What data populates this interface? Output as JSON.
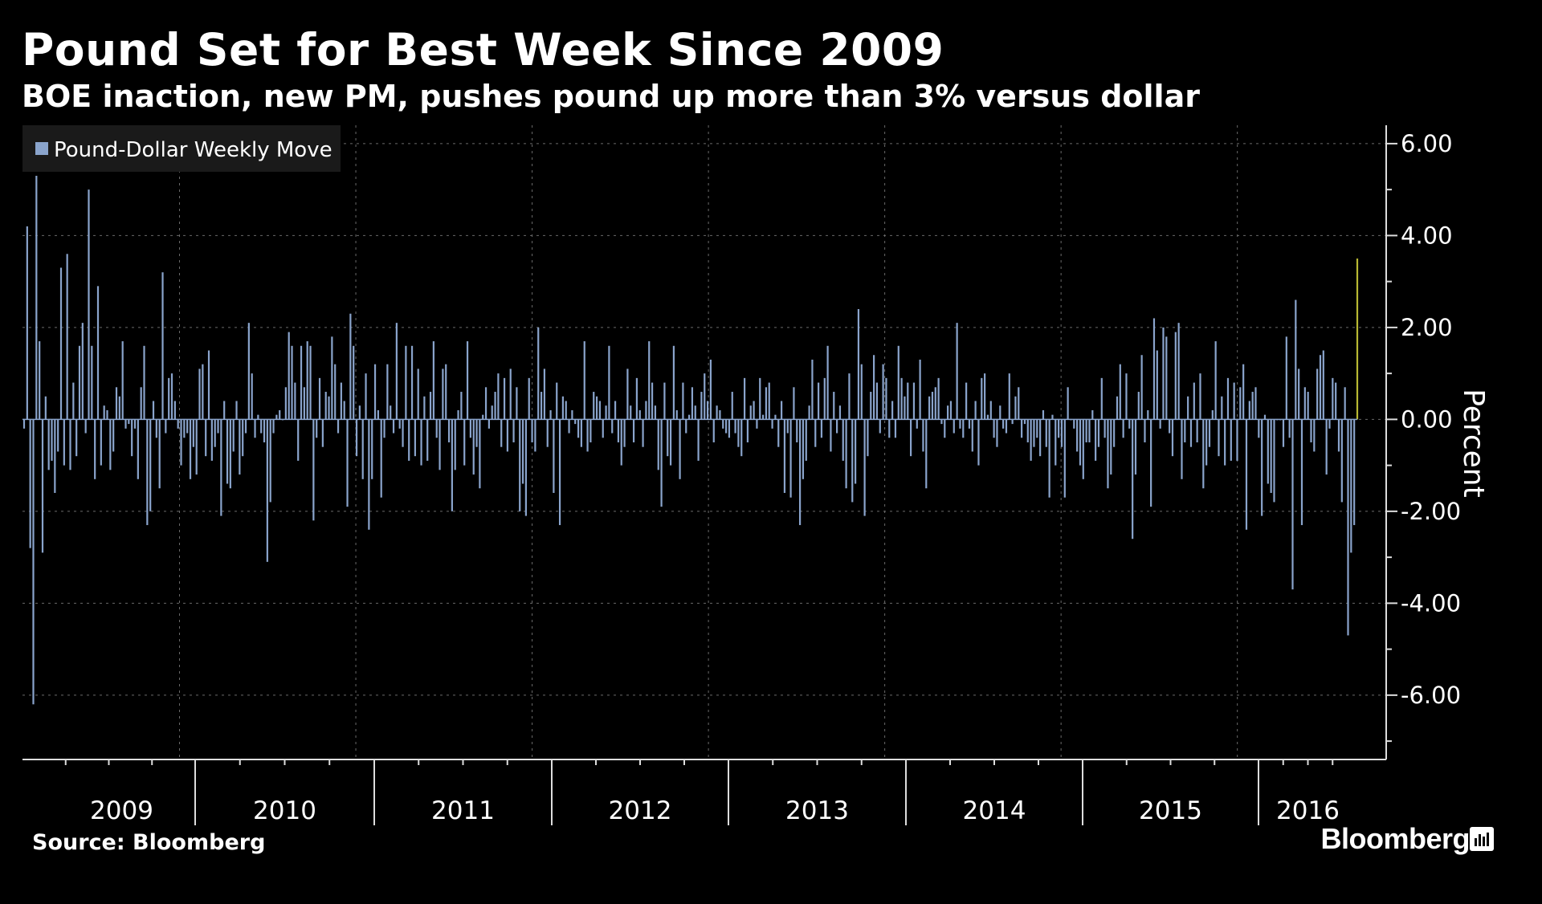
{
  "header": {
    "title": "Pound Set for Best Week Since 2009",
    "subtitle": "BOE inaction, new PM, pushes pound up more than 3% versus dollar"
  },
  "footer": {
    "source": "Source: Bloomberg",
    "brand": "Bloomberg"
  },
  "colors": {
    "background": "#000000",
    "bar": "#8aa4cc",
    "highlight": "#b8b832",
    "grid": "#6a6a6a",
    "legend_bg": "#1a1a1a"
  },
  "chart_data": {
    "type": "bar",
    "ylabel": "Percent",
    "ylim": [
      -7.4,
      6.4
    ],
    "yticks": [
      6,
      4,
      2,
      0,
      -2,
      -4,
      -6
    ],
    "ytick_labels": [
      "6.00",
      "4.00",
      "2.00",
      "0.00",
      "-2.00",
      "-4.00",
      "-6.00"
    ],
    "x_start_year": 2009,
    "x_end_year": 2016.58,
    "years": [
      "2009",
      "2010",
      "2011",
      "2012",
      "2013",
      "2014",
      "2015",
      "2016"
    ],
    "grid": true,
    "legend": {
      "position": "top-left",
      "entries": [
        "Pound-Dollar Weekly Move"
      ]
    },
    "series": [
      {
        "name": "Pound-Dollar Weekly Move",
        "values": [
          -0.2,
          4.2,
          -2.8,
          -6.2,
          5.3,
          1.7,
          -2.9,
          0.5,
          -1.1,
          -0.9,
          -1.6,
          -0.7,
          3.3,
          -1.0,
          3.6,
          -1.1,
          0.8,
          -0.8,
          1.6,
          2.1,
          -0.3,
          5.0,
          1.6,
          -1.3,
          2.9,
          -1.0,
          0.3,
          0.2,
          -1.1,
          -0.7,
          0.7,
          0.5,
          1.7,
          -0.2,
          -0.1,
          -0.8,
          -0.2,
          -1.3,
          0.7,
          1.6,
          -2.3,
          -2.0,
          0.4,
          -0.4,
          -1.5,
          3.2,
          -0.3,
          0.9,
          1.0,
          0.4,
          -0.2,
          -1.0,
          -0.4,
          -0.3,
          -1.3,
          -0.6,
          -1.2,
          1.1,
          1.2,
          -0.8,
          1.5,
          -0.9,
          -0.6,
          -0.3,
          -2.1,
          0.4,
          -1.4,
          -1.5,
          -0.7,
          0.4,
          -1.2,
          -0.8,
          -0.3,
          2.1,
          1.0,
          -0.4,
          0.1,
          -0.3,
          -0.5,
          -3.1,
          -1.8,
          -0.3,
          0.1,
          0.2,
          0.0,
          0.7,
          1.9,
          1.6,
          0.8,
          -0.9,
          1.6,
          0.7,
          1.7,
          1.6,
          -2.2,
          -0.4,
          0.9,
          -0.6,
          0.6,
          0.5,
          1.8,
          1.2,
          -0.3,
          0.8,
          0.4,
          -1.9,
          2.3,
          1.6,
          -0.8,
          0.3,
          -1.3,
          1.0,
          -2.4,
          -1.3,
          1.2,
          0.2,
          -1.7,
          -0.4,
          1.2,
          0.3,
          -0.3,
          2.1,
          -0.2,
          -0.6,
          1.6,
          -0.9,
          1.6,
          -0.8,
          1.1,
          -1.0,
          0.5,
          -0.9,
          0.6,
          1.7,
          -0.4,
          -1.1,
          1.1,
          1.2,
          -0.5,
          -2.0,
          -1.1,
          0.2,
          0.6,
          -1.0,
          1.7,
          -0.4,
          -1.2,
          -0.6,
          -1.5,
          0.1,
          0.7,
          -0.2,
          0.3,
          0.6,
          1.0,
          -0.6,
          0.9,
          -0.7,
          1.1,
          -0.5,
          0.7,
          -2.0,
          -1.4,
          -2.1,
          0.9,
          -0.5,
          -0.7,
          2.0,
          0.6,
          1.1,
          -0.6,
          0.2,
          -1.6,
          0.8,
          -2.3,
          0.5,
          0.4,
          -0.3,
          0.2,
          -0.1,
          -0.4,
          -0.6,
          1.7,
          -0.7,
          -0.5,
          0.6,
          0.5,
          0.4,
          -0.4,
          0.3,
          1.6,
          -0.3,
          0.4,
          -0.5,
          -1.0,
          -0.6,
          1.1,
          0.3,
          -0.5,
          0.9,
          0.2,
          -0.6,
          0.4,
          1.7,
          0.8,
          0.3,
          -1.1,
          -1.9,
          0.8,
          -0.8,
          -1.0,
          1.6,
          0.2,
          -1.3,
          0.8,
          -0.3,
          0.1,
          0.7,
          0.3,
          -0.9,
          0.6,
          1.0,
          0.4,
          1.3,
          -0.5,
          0.3,
          0.2,
          -0.2,
          -0.3,
          -0.4,
          0.6,
          -0.3,
          -0.6,
          -0.8,
          0.9,
          -0.5,
          0.3,
          0.4,
          -0.2,
          0.9,
          0.1,
          0.7,
          0.8,
          -0.2,
          0.1,
          -0.6,
          0.4,
          -1.6,
          -0.3,
          -1.7,
          0.7,
          -0.5,
          -2.3,
          -1.3,
          -0.9,
          0.3,
          1.3,
          -0.6,
          0.8,
          -0.4,
          0.9,
          1.6,
          -0.7,
          0.6,
          -0.3,
          0.3,
          -0.9,
          -1.5,
          1.0,
          -1.8,
          -1.4,
          2.4,
          1.2,
          -2.1,
          -0.8,
          0.6,
          1.4,
          0.8,
          -0.3,
          1.2,
          0.9,
          -0.4,
          0.4,
          -0.4,
          1.6,
          0.9,
          0.5,
          0.8,
          -0.8,
          0.8,
          -0.2,
          1.3,
          -0.7,
          -1.5,
          0.5,
          0.6,
          0.7,
          0.9,
          -0.1,
          -0.4,
          0.3,
          0.4,
          -0.3,
          2.1,
          -0.2,
          -0.4,
          0.8,
          -0.2,
          -0.7,
          0.4,
          -1.0,
          0.9,
          1.0,
          0.1,
          0.4,
          -0.4,
          -0.6,
          0.3,
          -0.2,
          -0.3,
          1.0,
          -0.1,
          0.5,
          0.7,
          -0.4,
          -0.1,
          -0.5,
          -0.9,
          -0.6,
          -0.4,
          -0.8,
          0.2,
          -0.6,
          -1.7,
          0.1,
          -1.0,
          -0.4,
          -0.6,
          -1.7,
          0.7,
          0.0,
          -0.2,
          -0.7,
          -1.0,
          -1.3,
          -0.5,
          -0.5,
          0.2,
          -0.9,
          -0.6,
          0.9,
          -0.4,
          -1.5,
          -1.2,
          -0.6,
          0.5,
          1.2,
          -0.4,
          1.0,
          -0.2,
          -2.6,
          -1.2,
          0.6,
          1.4,
          -0.5,
          0.2,
          -1.9,
          2.2,
          1.5,
          -0.2,
          2.0,
          1.8,
          -0.3,
          -0.8,
          1.9,
          2.1,
          -1.3,
          -0.5,
          0.5,
          -0.6,
          0.8,
          -0.5,
          1.0,
          -1.5,
          -1.0,
          -0.6,
          0.2,
          1.7,
          -0.8,
          0.5,
          -1.0,
          0.9,
          -0.9,
          0.8,
          -0.9,
          0.7,
          1.2,
          -2.4,
          0.4,
          0.6,
          0.7,
          -0.4,
          -2.1,
          0.1,
          -1.4,
          -1.6,
          -1.8,
          0.0,
          0.0,
          -0.6,
          1.8,
          -0.4,
          -3.7,
          2.6,
          1.1,
          -2.3,
          0.7,
          0.6,
          -0.5,
          -0.7,
          1.1,
          1.4,
          1.5,
          -1.2,
          -0.2,
          0.9,
          0.8,
          -0.7,
          -1.8,
          0.7,
          -4.7,
          -2.9,
          -2.3,
          3.5
        ]
      }
    ],
    "highlight_last": true
  }
}
